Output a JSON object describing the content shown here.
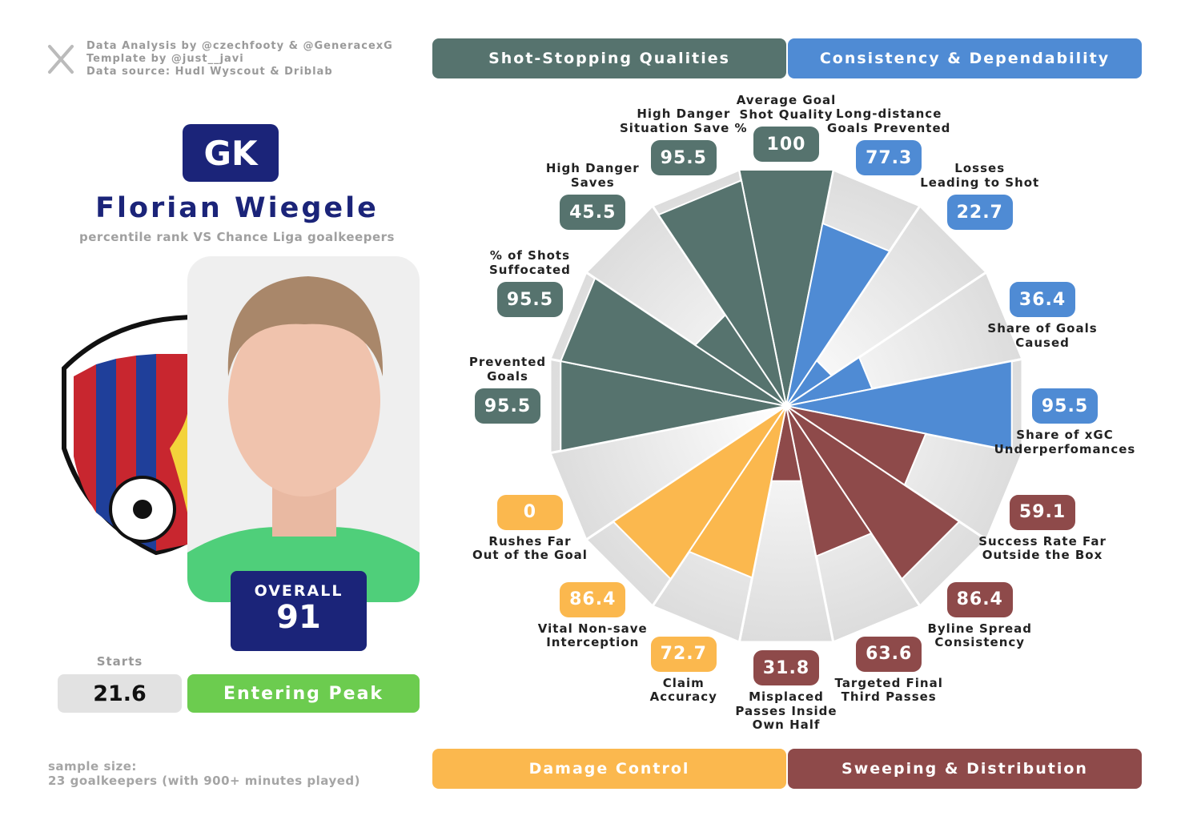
{
  "header": {
    "credits": [
      "Data Analysis by @czechfooty & @GeneracexG",
      "Template by @just__javi",
      "Data source: Hudl Wyscout & Driblab"
    ],
    "position": "GK",
    "player": "Florian Wiegele",
    "subtitle": "percentile rank VS Chance Liga goalkeepers"
  },
  "overall": {
    "label": "OVERALL",
    "value": 91
  },
  "starts": {
    "label": "Starts",
    "value": 21.6
  },
  "status": "Entering Peak",
  "footnote": "sample size:\n23 goalkeepers (with 900+ minutes played)",
  "chart_data": {
    "type": "pizza",
    "categories": [
      "Average Goal\nShot Quality",
      "Long-distance\nGoals Prevented",
      "Losses\nLeading to Shot",
      "Share of Goals\nCaused",
      "Share of xGC\nUnderperfomances",
      "Success Rate Far\nOutside the Box",
      "Byline Spread\nConsistency",
      "Targeted Final\nThird Passes",
      "Misplaced\nPasses Inside\nOwn Half",
      "Claim\nAccuracy",
      "Vital Non-save\nInterception",
      "Rushes Far\nOut of the Goal",
      "Prevented\nGoals",
      "% of Shots\nSuffocated",
      "High Danger\nSaves",
      "High Danger\nSituation Save %"
    ],
    "values": [
      100,
      77.3,
      22.7,
      36.4,
      95.5,
      59.1,
      86.4,
      63.6,
      31.8,
      72.7,
      86.4,
      0,
      95.5,
      95.5,
      45.5,
      95.5
    ],
    "colors": [
      "#56736e",
      "#4f8bd4",
      "#4f8bd4",
      "#4f8bd4",
      "#4f8bd4",
      "#8e4a4a",
      "#8e4a4a",
      "#8e4a4a",
      "#8e4a4a",
      "#fbb84e",
      "#fbb84e",
      "#fbb84e",
      "#56736e",
      "#56736e",
      "#56736e",
      "#56736e"
    ],
    "ylim": [
      0,
      100
    ],
    "legend": [
      {
        "name": "Shot-Stopping Qualities",
        "color": "#56736e"
      },
      {
        "name": "Consistency & Dependability",
        "color": "#4f8bd4"
      },
      {
        "name": "Damage Control",
        "color": "#fbb84e"
      },
      {
        "name": "Sweeping & Distribution",
        "color": "#8e4a4a"
      }
    ]
  }
}
